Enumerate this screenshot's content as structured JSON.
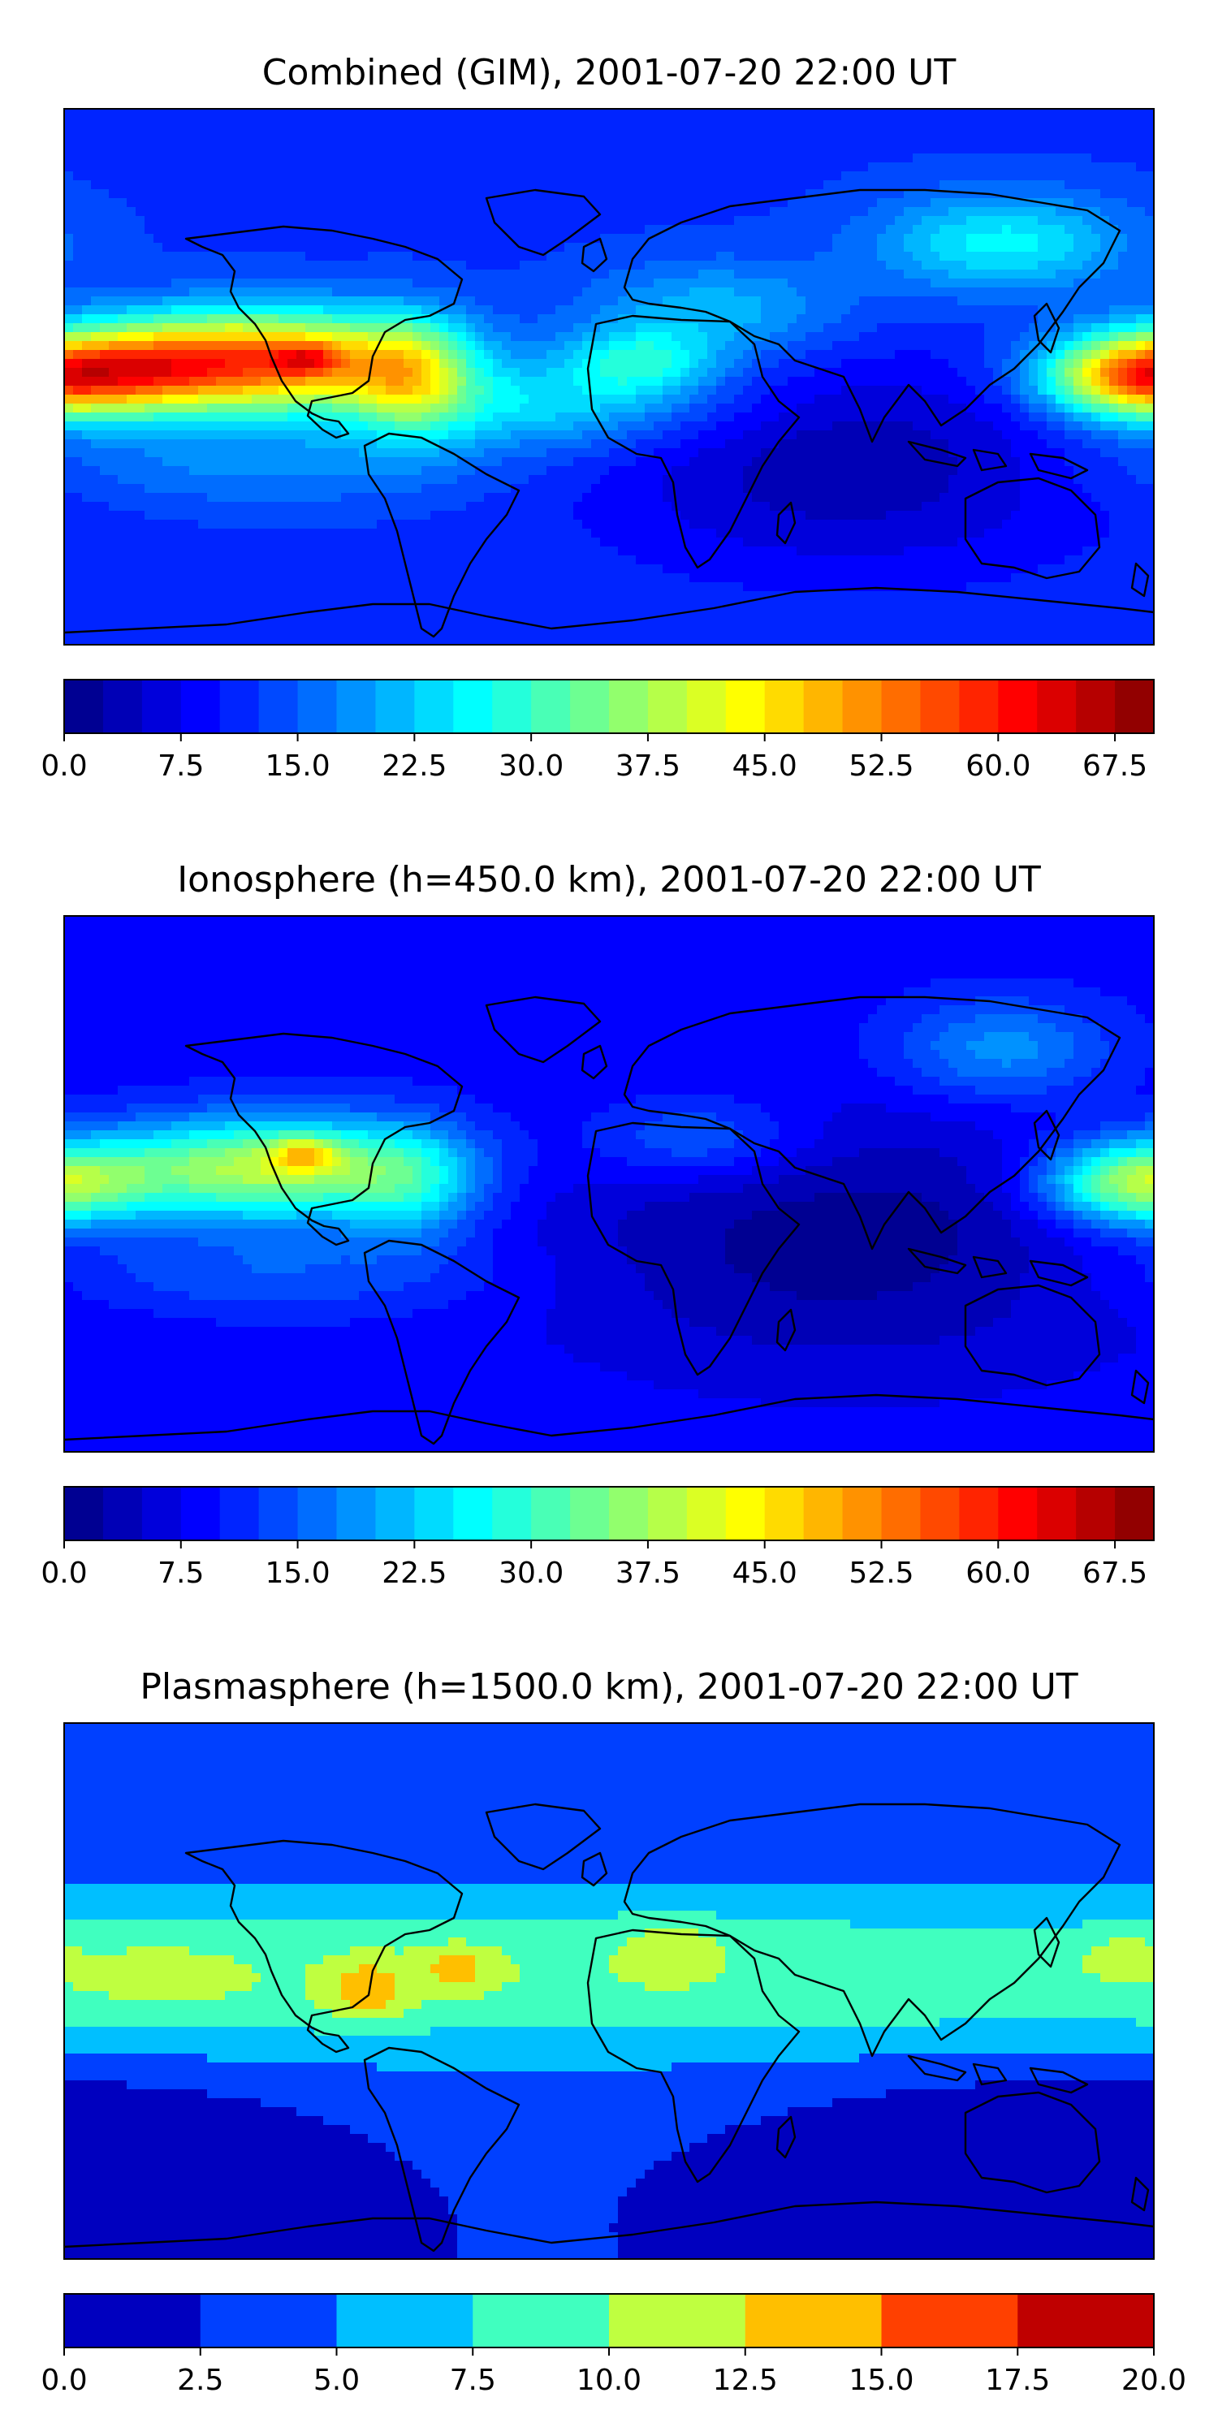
{
  "panels": [
    {
      "title": "Combined (GIM), 2001-07-20 22:00 UT",
      "colorbar_ticks": [
        "0.0",
        "7.5",
        "15.0",
        "22.5",
        "30.0",
        "37.5",
        "45.0",
        "52.5",
        "60.0",
        "67.5"
      ],
      "colorbar": {
        "min": 0,
        "max": 70,
        "levels": 28,
        "colormap": "jet"
      },
      "field": {
        "base": 12,
        "features": [
          {
            "lon": -115,
            "lat": 5,
            "sx": 38,
            "sy": 12,
            "amp": 42
          },
          {
            "lon": -100,
            "lat": 6,
            "sx": 8,
            "sy": 4,
            "amp": 12
          },
          {
            "lon": -150,
            "lat": 2,
            "sx": 20,
            "sy": 10,
            "amp": 14
          },
          {
            "lon": -65,
            "lat": 0,
            "sx": 14,
            "sy": 14,
            "amp": 18
          },
          {
            "lon": 175,
            "lat": 0,
            "sx": 22,
            "sy": 10,
            "amp": 40
          },
          {
            "lon": 10,
            "lat": 5,
            "sx": 18,
            "sy": 8,
            "amp": 14
          },
          {
            "lon": 35,
            "lat": 22,
            "sx": 30,
            "sy": 12,
            "amp": 10
          },
          {
            "lon": 130,
            "lat": 45,
            "sx": 30,
            "sy": 12,
            "amp": 14
          },
          {
            "lon": 80,
            "lat": -30,
            "sx": 60,
            "sy": 25,
            "amp": -9
          },
          {
            "lon": -20,
            "lat": -10,
            "sx": 40,
            "sy": 10,
            "amp": 12
          },
          {
            "lon": -120,
            "lat": -30,
            "sx": 60,
            "sy": 10,
            "amp": 6
          }
        ]
      }
    },
    {
      "title": "Ionosphere  (h=450.0 km), 2001-07-20 22:00 UT",
      "colorbar_ticks": [
        "0.0",
        "7.5",
        "15.0",
        "22.5",
        "30.0",
        "37.5",
        "45.0",
        "52.5",
        "60.0",
        "67.5"
      ],
      "colorbar": {
        "min": 0,
        "max": 70,
        "levels": 28,
        "colormap": "jet"
      },
      "field": {
        "base": 9,
        "features": [
          {
            "lon": -115,
            "lat": 5,
            "sx": 38,
            "sy": 12,
            "amp": 30
          },
          {
            "lon": -100,
            "lat": 10,
            "sx": 8,
            "sy": 4,
            "amp": 15
          },
          {
            "lon": -65,
            "lat": 0,
            "sx": 16,
            "sy": 14,
            "amp": 12
          },
          {
            "lon": 175,
            "lat": 0,
            "sx": 22,
            "sy": 10,
            "amp": 28
          },
          {
            "lon": 30,
            "lat": 15,
            "sx": 25,
            "sy": 10,
            "amp": 8
          },
          {
            "lon": 130,
            "lat": 45,
            "sx": 25,
            "sy": 12,
            "amp": 10
          },
          {
            "lon": 80,
            "lat": -20,
            "sx": 70,
            "sy": 30,
            "amp": -8
          },
          {
            "lon": -120,
            "lat": -30,
            "sx": 60,
            "sy": 10,
            "amp": 6
          }
        ]
      }
    },
    {
      "title": "Plasmasphere (h=1500.0 km), 2001-07-20 22:00 UT",
      "colorbar_ticks": [
        "0.0",
        "2.5",
        "5.0",
        "7.5",
        "10.0",
        "12.5",
        "15.0",
        "17.5",
        "20.0"
      ],
      "colorbar": {
        "min": 0,
        "max": 20,
        "levels": 8,
        "colormap": "jet"
      },
      "field": {
        "base": 2.5,
        "features": [
          {
            "lon": 0,
            "lat": 5,
            "sx": 400,
            "sy": 22,
            "amp": 7
          },
          {
            "lon": -80,
            "lat": 0,
            "sx": 10,
            "sy": 8,
            "amp": 5
          },
          {
            "lon": -50,
            "lat": 8,
            "sx": 10,
            "sy": 6,
            "amp": 4
          },
          {
            "lon": -150,
            "lat": 5,
            "sx": 25,
            "sy": 12,
            "amp": 2
          },
          {
            "lon": 20,
            "lat": 15,
            "sx": 12,
            "sy": 8,
            "amp": 3
          },
          {
            "lon": 170,
            "lat": 12,
            "sx": 10,
            "sy": 6,
            "amp": 2.5
          },
          {
            "lon": 140,
            "lat": -40,
            "sx": 60,
            "sy": 15,
            "amp": -2
          },
          {
            "lon": -150,
            "lat": -45,
            "sx": 40,
            "sy": 15,
            "amp": -1
          }
        ]
      }
    }
  ]
}
